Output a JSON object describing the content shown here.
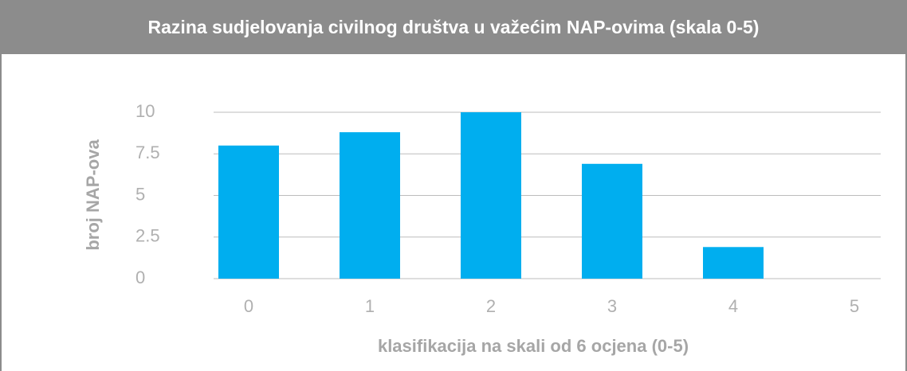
{
  "chart_data": {
    "type": "bar",
    "title": "Razina sudjelovanja civilnog društva u važećim NAP-ovima (skala 0-5)",
    "x_label": "klasifikacija na skali od 6 ocjena (0-5)",
    "y_label": "broj NAP-ova",
    "categories": [
      "0",
      "1",
      "2",
      "3",
      "4",
      "5"
    ],
    "values": [
      8,
      8.8,
      10,
      6.9,
      1.9,
      0
    ],
    "color": "#00aeef",
    "ylim": [
      0,
      10
    ],
    "yticks": [
      0,
      2.5,
      5,
      7.5,
      10
    ],
    "grid": true
  }
}
